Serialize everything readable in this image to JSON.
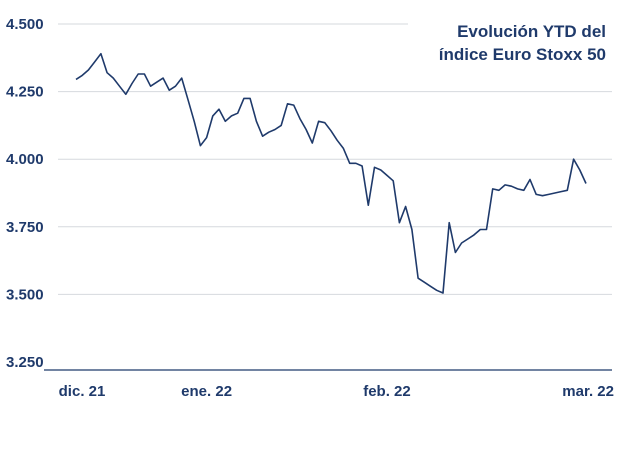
{
  "chart_data": {
    "type": "line",
    "title_lines": [
      "Evolución YTD del",
      "índice Euro Stoxx 50"
    ],
    "xlabel": "",
    "ylabel": "",
    "ylim": [
      3250,
      4500
    ],
    "yticks": [
      3250,
      3500,
      3750,
      4000,
      4250,
      4500
    ],
    "ytick_labels": [
      "3.250",
      "3.500",
      "3.750",
      "4.000",
      "4.250",
      "4.500"
    ],
    "x_tick_labels": [
      {
        "label": "dic. 21",
        "index": 0
      },
      {
        "label": "ene. 22",
        "index": 21
      },
      {
        "label": "feb. 22",
        "index": 50
      },
      {
        "label": "mar. 22",
        "index": 88
      }
    ],
    "grid": true,
    "line_color": "#1f3a6b",
    "series": [
      {
        "values": [
          4295,
          4310,
          4330,
          4360,
          4390,
          4320,
          4300,
          4270,
          4240,
          4280,
          4315,
          4315,
          4270,
          4285,
          4300,
          4255,
          4270,
          4300,
          4220,
          4140,
          4050,
          4080,
          4160,
          4185,
          4140,
          4160,
          4170,
          4225,
          4225,
          4140,
          4085,
          4100,
          4110,
          4125,
          4205,
          4200,
          4150,
          4110,
          4060,
          4140,
          4135,
          4105,
          4070,
          4040,
          3985,
          3985,
          3975,
          3830,
          3970,
          3960,
          3940,
          3920,
          3765,
          3825,
          3740,
          3560,
          3545,
          3530,
          3515,
          3505,
          3765,
          3655,
          3690,
          3705,
          3720,
          3740,
          3740,
          3890,
          3885,
          3905,
          3900,
          3890,
          3885,
          3925,
          3870,
          3865,
          3870,
          3875,
          3880,
          3885,
          4000,
          3960,
          3910
        ]
      }
    ]
  }
}
